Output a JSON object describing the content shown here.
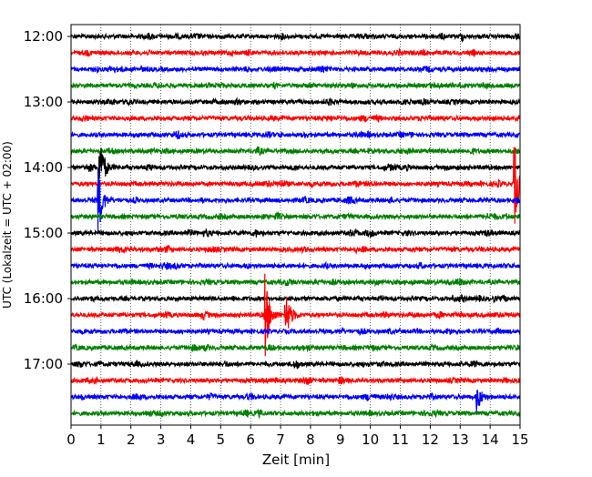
{
  "chart_data": {
    "type": "line",
    "subtype": "helicorder seismogram",
    "xlabel": "Zeit  [min]",
    "ylabel": "UTC (Lokalzeit = UTC + 02:00)",
    "xlim": [
      0,
      15
    ],
    "x_ticks": [
      "0",
      "1",
      "2",
      "3",
      "4",
      "5",
      "6",
      "7",
      "8",
      "9",
      "10",
      "11",
      "12",
      "13",
      "14",
      "15"
    ],
    "y_ticks": [
      "12:00",
      "13:00",
      "14:00",
      "15:00",
      "16:00",
      "17:00"
    ],
    "grid": "vertical dotted at each minute",
    "trace_colors": [
      "#000000",
      "#ff0000",
      "#0000ff",
      "#008000"
    ],
    "traces": [
      {
        "start": "12:00",
        "color": "#000000",
        "events": []
      },
      {
        "start": "12:15",
        "color": "#ff0000",
        "events": []
      },
      {
        "start": "12:30",
        "color": "#0000ff",
        "events": []
      },
      {
        "start": "12:45",
        "color": "#008000",
        "events": []
      },
      {
        "start": "13:00",
        "color": "#000000",
        "events": []
      },
      {
        "start": "13:15",
        "color": "#ff0000",
        "events": []
      },
      {
        "start": "13:30",
        "color": "#0000ff",
        "events": []
      },
      {
        "start": "13:45",
        "color": "#008000",
        "events": []
      },
      {
        "start": "14:00",
        "color": "#000000",
        "events": [
          {
            "t": 0.92,
            "amp": 3
          }
        ]
      },
      {
        "start": "14:15",
        "color": "#ff0000",
        "events": [
          {
            "t": 14.8,
            "amp": 3
          }
        ]
      },
      {
        "start": "14:30",
        "color": "#0000ff",
        "events": [
          {
            "t": 0.9,
            "amp": 2.2
          }
        ]
      },
      {
        "start": "14:45",
        "color": "#008000",
        "events": []
      },
      {
        "start": "15:00",
        "color": "#000000",
        "events": []
      },
      {
        "start": "15:15",
        "color": "#ff0000",
        "events": []
      },
      {
        "start": "15:30",
        "color": "#0000ff",
        "events": []
      },
      {
        "start": "15:45",
        "color": "#008000",
        "events": []
      },
      {
        "start": "16:00",
        "color": "#000000",
        "events": []
      },
      {
        "start": "16:15",
        "color": "#ff0000",
        "events": [
          {
            "t": 6.45,
            "amp": 3.5
          },
          {
            "t": 7.15,
            "amp": 2
          }
        ]
      },
      {
        "start": "16:30",
        "color": "#0000ff",
        "events": []
      },
      {
        "start": "16:45",
        "color": "#008000",
        "events": []
      },
      {
        "start": "17:00",
        "color": "#000000",
        "events": []
      },
      {
        "start": "17:15",
        "color": "#ff0000",
        "events": []
      },
      {
        "start": "17:30",
        "color": "#0000ff",
        "events": [
          {
            "t": 13.55,
            "amp": 0.8
          }
        ]
      },
      {
        "start": "17:45",
        "color": "#008000",
        "events": []
      }
    ]
  }
}
